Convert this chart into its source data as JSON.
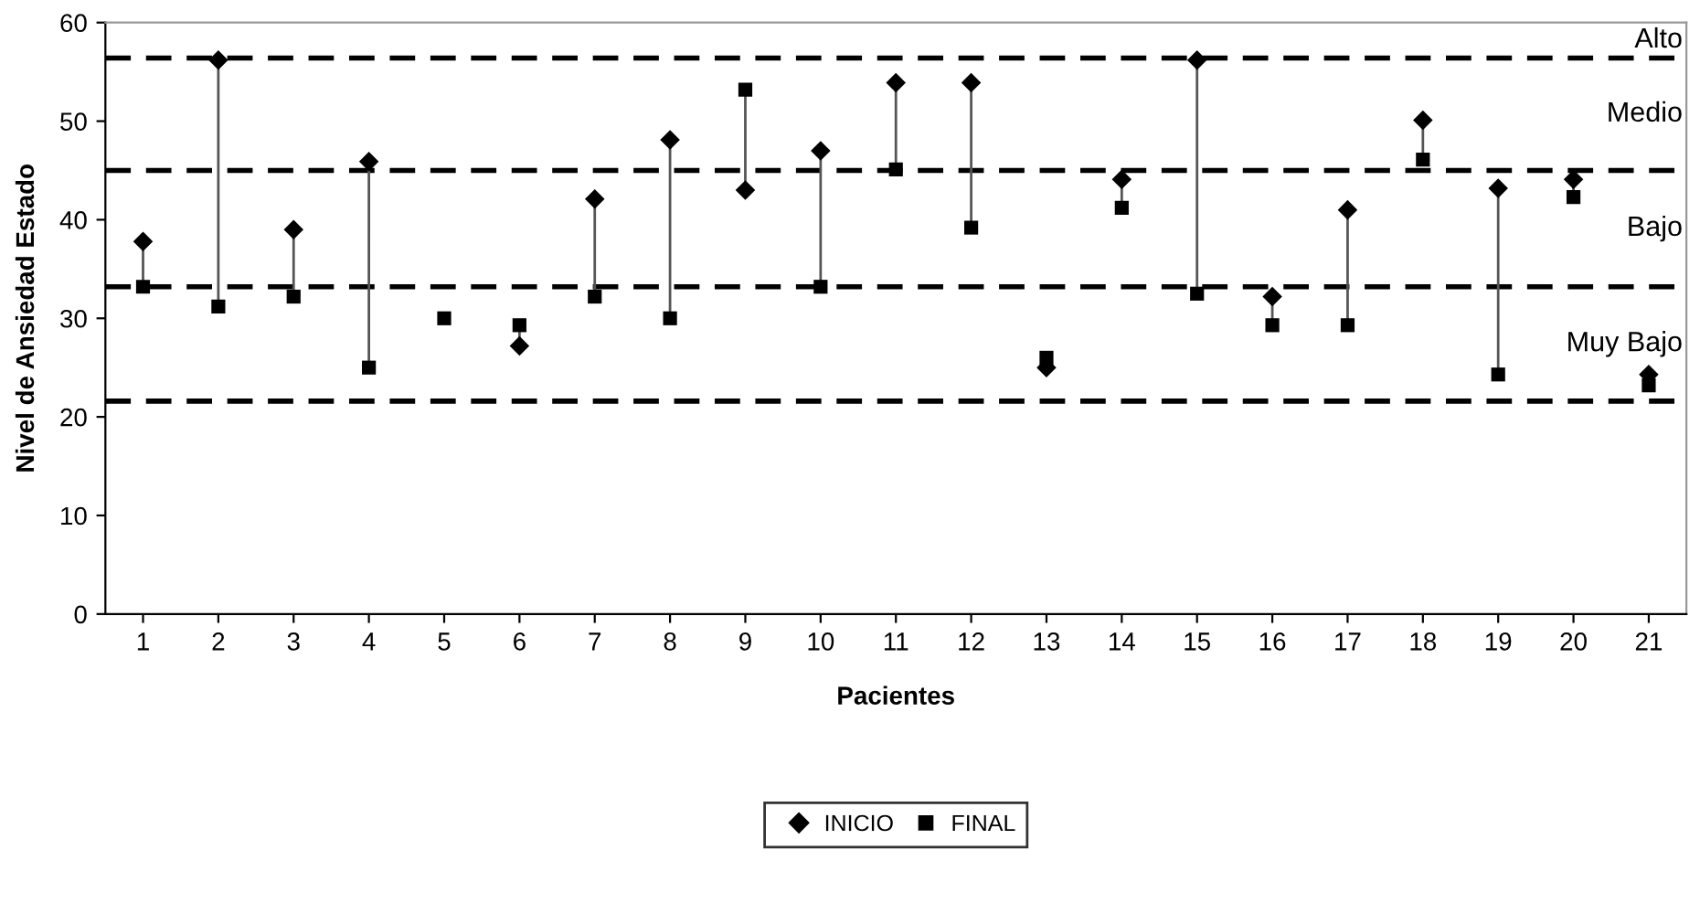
{
  "chart_data": {
    "type": "scatter",
    "xlabel": "Pacientes",
    "ylabel": "Nivel de Ansiedad Estado",
    "categories": [
      "1",
      "2",
      "3",
      "4",
      "5",
      "6",
      "7",
      "8",
      "9",
      "10",
      "11",
      "12",
      "13",
      "14",
      "15",
      "16",
      "17",
      "18",
      "19",
      "20",
      "21"
    ],
    "series": [
      {
        "name": "INICIO",
        "color": "#000000",
        "marker": "diamond",
        "values": [
          37.8,
          56.2,
          39,
          45.9,
          null,
          27.2,
          42.1,
          48.1,
          43,
          47,
          53.9,
          53.9,
          25,
          44.1,
          56.2,
          32.2,
          41,
          50.1,
          43.2,
          44.1,
          24.3
        ]
      },
      {
        "name": "FINAL",
        "color": "#000000",
        "marker": "square",
        "values": [
          33.2,
          31.2,
          32.2,
          25,
          30,
          29.3,
          32.2,
          30,
          53.2,
          33.2,
          45.1,
          39.2,
          26,
          41.2,
          32.5,
          29.3,
          29.3,
          46.1,
          24.3,
          42.3,
          23.2
        ]
      }
    ],
    "ylim": [
      0,
      60
    ],
    "yticks": [
      0,
      10,
      20,
      30,
      40,
      50,
      60
    ],
    "ref_lines": [
      {
        "axis": "y",
        "value": 56.4,
        "label": null,
        "color": "#000000",
        "line_style": "dashed"
      },
      {
        "axis": "y",
        "value": 45,
        "label": null,
        "color": "#000000",
        "line_style": "dashed"
      },
      {
        "axis": "y",
        "value": 33.2,
        "label": null,
        "color": "#000000",
        "line_style": "dashed"
      },
      {
        "axis": "y",
        "value": 21.6,
        "label": null,
        "color": "#000000",
        "line_style": "dashed"
      }
    ],
    "annotations": [
      "Alto",
      "Medio",
      "Bajo",
      "Muy Bajo"
    ],
    "grid": false,
    "legend": "bottom"
  }
}
